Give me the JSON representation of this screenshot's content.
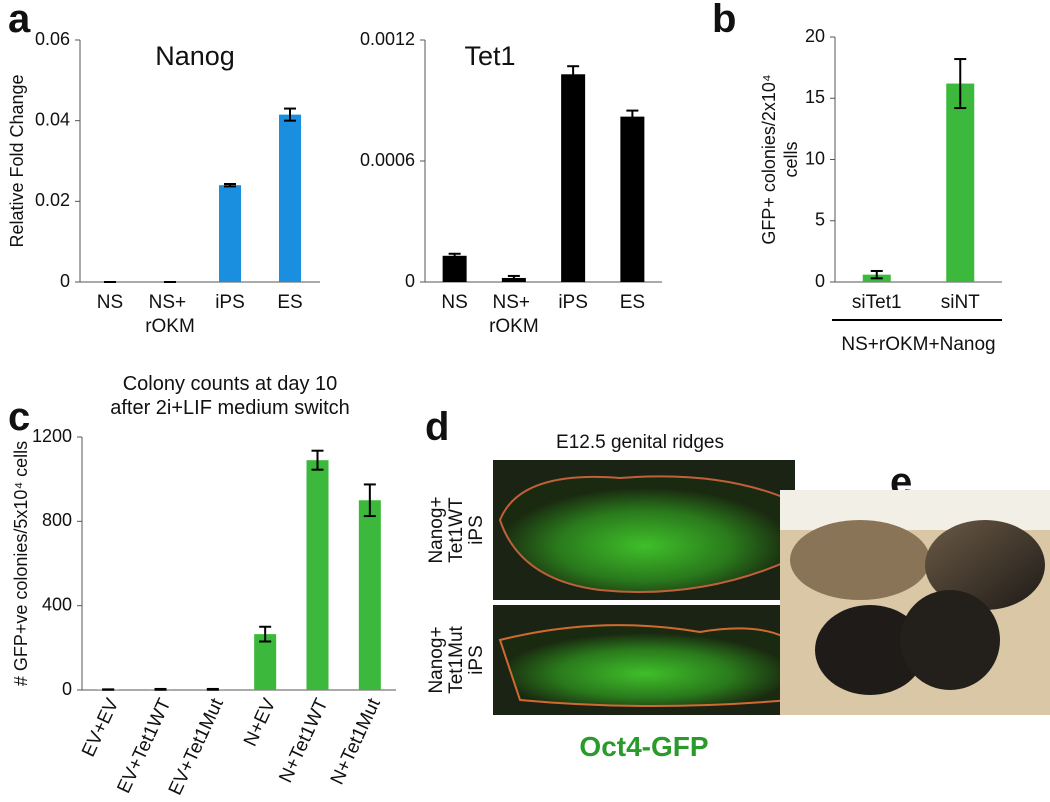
{
  "panel_letters": [
    "a",
    "b",
    "c",
    "d",
    "e"
  ],
  "panel_d": {
    "title": "E12.5 genital ridges",
    "rows": [
      [
        "Nanog+",
        "Tet1WT",
        "iPS"
      ],
      [
        "Nanog+",
        "Tet1Mut",
        "iPS"
      ]
    ],
    "caption": "Oct4-GFP"
  },
  "chart_data": [
    {
      "type": "bar",
      "title": "Nanog",
      "y_label": [
        "Relative Fold Change"
      ],
      "categories": [
        "NS",
        "NS+ rOKM",
        "iPS",
        "ES"
      ],
      "values": [
        0,
        0,
        0.024,
        0.0415
      ],
      "errors": [
        0,
        0,
        0.0003,
        0.0015
      ],
      "color": "#1a8fe0",
      "ylim": [
        0,
        0.06
      ],
      "yticks": [
        0,
        0.02,
        0.04,
        0.06
      ]
    },
    {
      "type": "bar",
      "title": "Tet1",
      "categories": [
        "NS",
        "NS+ rOKM",
        "iPS",
        "ES"
      ],
      "values": [
        0.00013,
        2e-05,
        0.00103,
        0.00082
      ],
      "errors": [
        1e-05,
        1e-05,
        4e-05,
        3e-05
      ],
      "color": "#000000",
      "ylim": [
        0,
        0.0012
      ],
      "yticks": [
        0,
        0.0006,
        0.0012
      ]
    },
    {
      "type": "bar",
      "y_label": [
        "GFP+ colonies/2x10⁴",
        "cells"
      ],
      "categories": [
        "siTet1",
        "siNT"
      ],
      "group_label": "NS+rOKM+Nanog",
      "values": [
        0.6,
        16.2
      ],
      "errors": [
        0.3,
        2.0
      ],
      "color": "#3cb83c",
      "ylim": [
        0,
        20
      ],
      "yticks": [
        0,
        5,
        10,
        15,
        20
      ]
    },
    {
      "type": "bar",
      "title": [
        "Colony counts at day 10",
        "after 2i+LIF medium switch"
      ],
      "y_label": [
        "# GFP+ve colonies/5x10⁴ cells"
      ],
      "categories": [
        "EV+EV",
        "EV+Tet1WT",
        "EV+Tet1Mut",
        "N+EV",
        "N+Tet1WT",
        "N+Tet1Mut"
      ],
      "values": [
        2,
        3,
        3,
        265,
        1090,
        900
      ],
      "errors": [
        1,
        2,
        2,
        35,
        45,
        75
      ],
      "color": "#3cb83c",
      "ylim": [
        0,
        1200
      ],
      "yticks": [
        0,
        400,
        800,
        1200
      ]
    }
  ]
}
